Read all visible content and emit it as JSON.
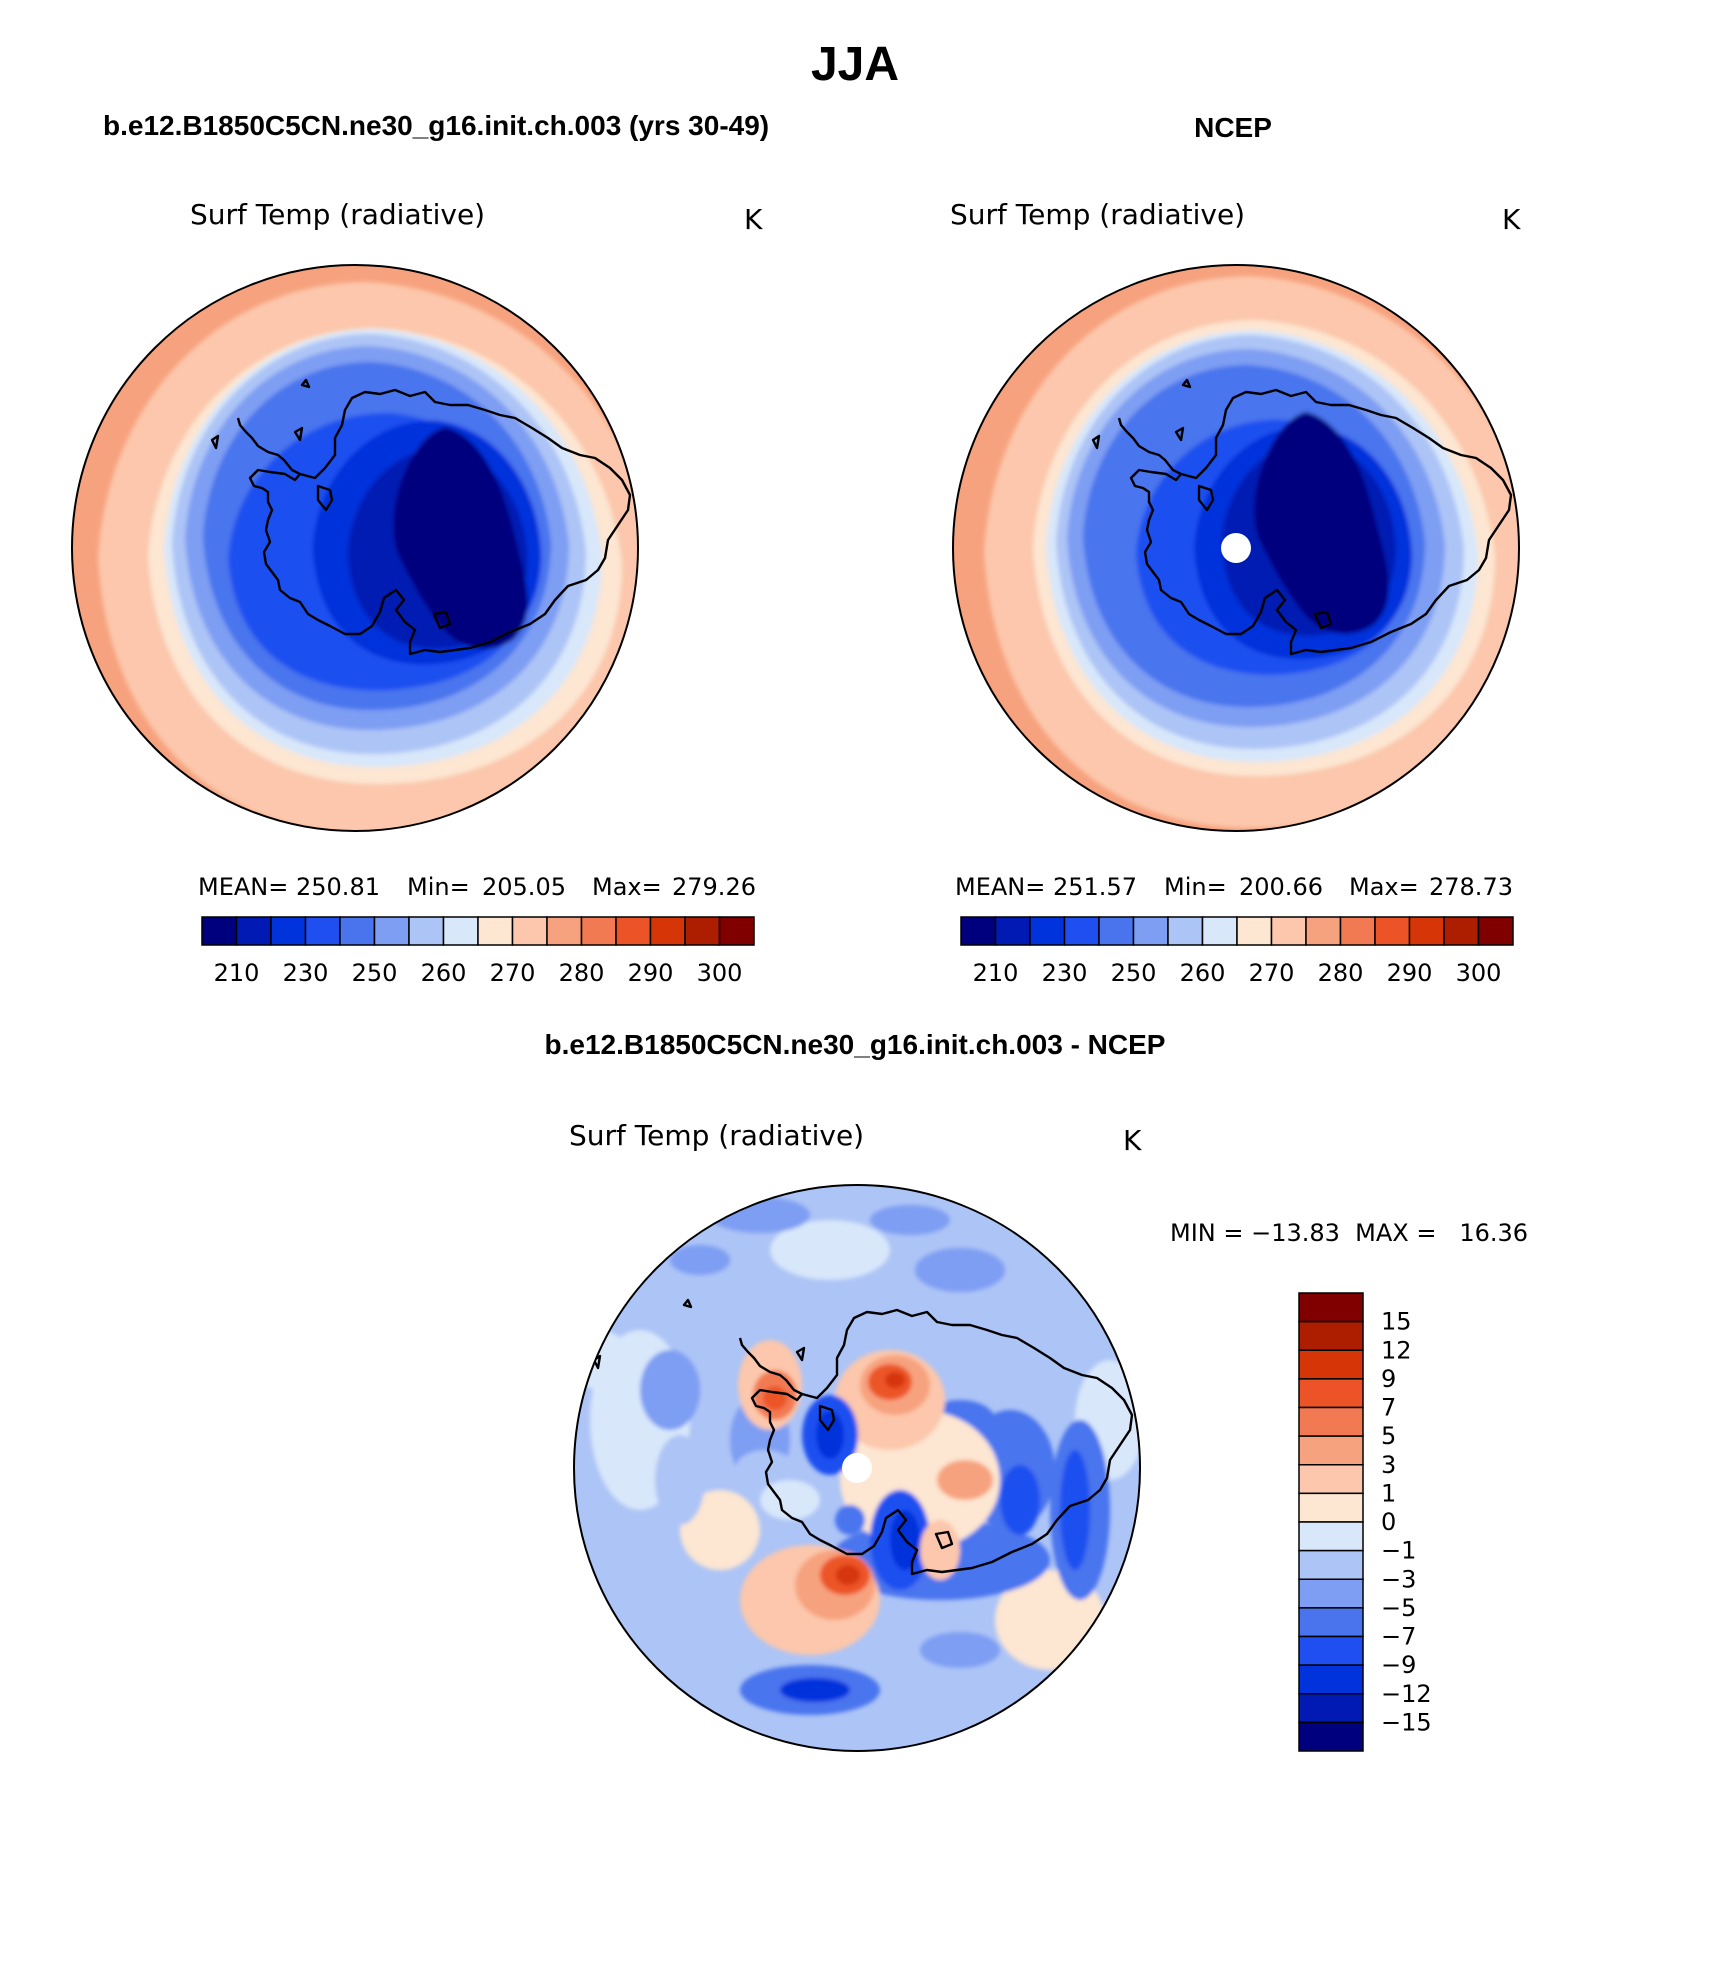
{
  "figure": {
    "season": "JJA",
    "panel_model_title": "b.e12.B1850C5CN.ne30_g16.init.ch.003 (yrs 30-49)",
    "panel_obs_title": "NCEP",
    "panel_diff_title": "b.e12.B1850C5CN.ne30_g16.init.ch.003 - NCEP"
  },
  "panels": {
    "model": {
      "variable": "Surf Temp (radiative)",
      "units": "K",
      "mean_label": "MEAN=",
      "mean": "250.81",
      "min_label": "Min=",
      "min": "205.05",
      "max_label": "Max=",
      "max": "279.26"
    },
    "obs": {
      "variable": "Surf Temp (radiative)",
      "units": "K",
      "mean_label": "MEAN=",
      "mean": "251.57",
      "min_label": "Min=",
      "min": "200.66",
      "max_label": "Max=",
      "max": "278.73"
    },
    "diff": {
      "variable": "Surf Temp (radiative)",
      "units": "K",
      "minmax": "MIN = −13.83  MAX =   16.36"
    }
  },
  "colorbars": {
    "abs": {
      "colors": [
        "#00007f",
        "#001ab3",
        "#0033dc",
        "#1f4ff0",
        "#4a74ee",
        "#7e9ef3",
        "#adc4f6",
        "#d8e7fa",
        "#fde6d2",
        "#fcc7ac",
        "#f7a27e",
        "#f27a52",
        "#ec5428",
        "#d63508",
        "#ad1d00",
        "#800000"
      ],
      "tick_labels": [
        "210",
        "230",
        "250",
        "260",
        "270",
        "280",
        "290",
        "300"
      ]
    },
    "diff": {
      "colors_top_to_bottom": [
        "#800000",
        "#ad1d00",
        "#d63508",
        "#ec5428",
        "#f27a52",
        "#f7a27e",
        "#fcc7ac",
        "#fde6d2",
        "#d8e7fa",
        "#adc4f6",
        "#7e9ef3",
        "#4a74ee",
        "#1f4ff0",
        "#0033dc",
        "#001ab3",
        "#00007f"
      ],
      "tick_labels": [
        "15",
        "12",
        "9",
        "7",
        "5",
        "3",
        "1",
        "0",
        "−1",
        "−3",
        "−5",
        "−7",
        "−9",
        "−12",
        "−15"
      ]
    }
  }
}
